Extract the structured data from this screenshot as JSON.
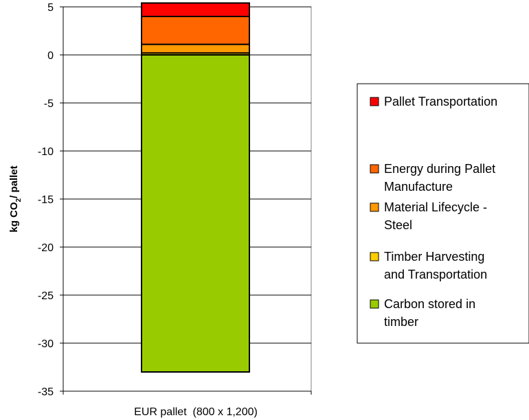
{
  "chart_data": {
    "type": "bar",
    "stacked": true,
    "categories": [
      "EUR pallet  (800 x 1,200)"
    ],
    "ylabel": {
      "main": "kg CO",
      "sub": "2",
      "tail": "/ pallet"
    },
    "ylim": [
      -35,
      5
    ],
    "yticks": [
      "5",
      "0",
      "-5",
      "-10",
      "-15",
      "-20",
      "-25",
      "-30",
      "-35"
    ],
    "grid": true,
    "legend_position": "right",
    "series": [
      {
        "name": "Carbon stored in timber",
        "legend_lines": [
          "Carbon stored in",
          "timber"
        ],
        "values": [
          -33.0
        ],
        "color": "#99cc00"
      },
      {
        "name": "Timber Harvesting and Transportation",
        "legend_lines": [
          "Timber Harvesting",
          "and Transportation"
        ],
        "values": [
          0.2
        ],
        "color": "#ffcc00"
      },
      {
        "name": "Material Lifecycle - Steel",
        "legend_lines": [
          "Material Lifecycle -",
          "Steel"
        ],
        "values": [
          0.9
        ],
        "color": "#ff9900"
      },
      {
        "name": "Energy during Pallet Manufacture",
        "legend_lines": [
          "Energy during Pallet",
          "Manufacture"
        ],
        "values": [
          2.9
        ],
        "color": "#ff6600"
      },
      {
        "name": "Pallet Transportation",
        "legend_lines": [
          "Pallet Transportation"
        ],
        "values": [
          1.4
        ],
        "color": "#ff0000"
      }
    ]
  }
}
